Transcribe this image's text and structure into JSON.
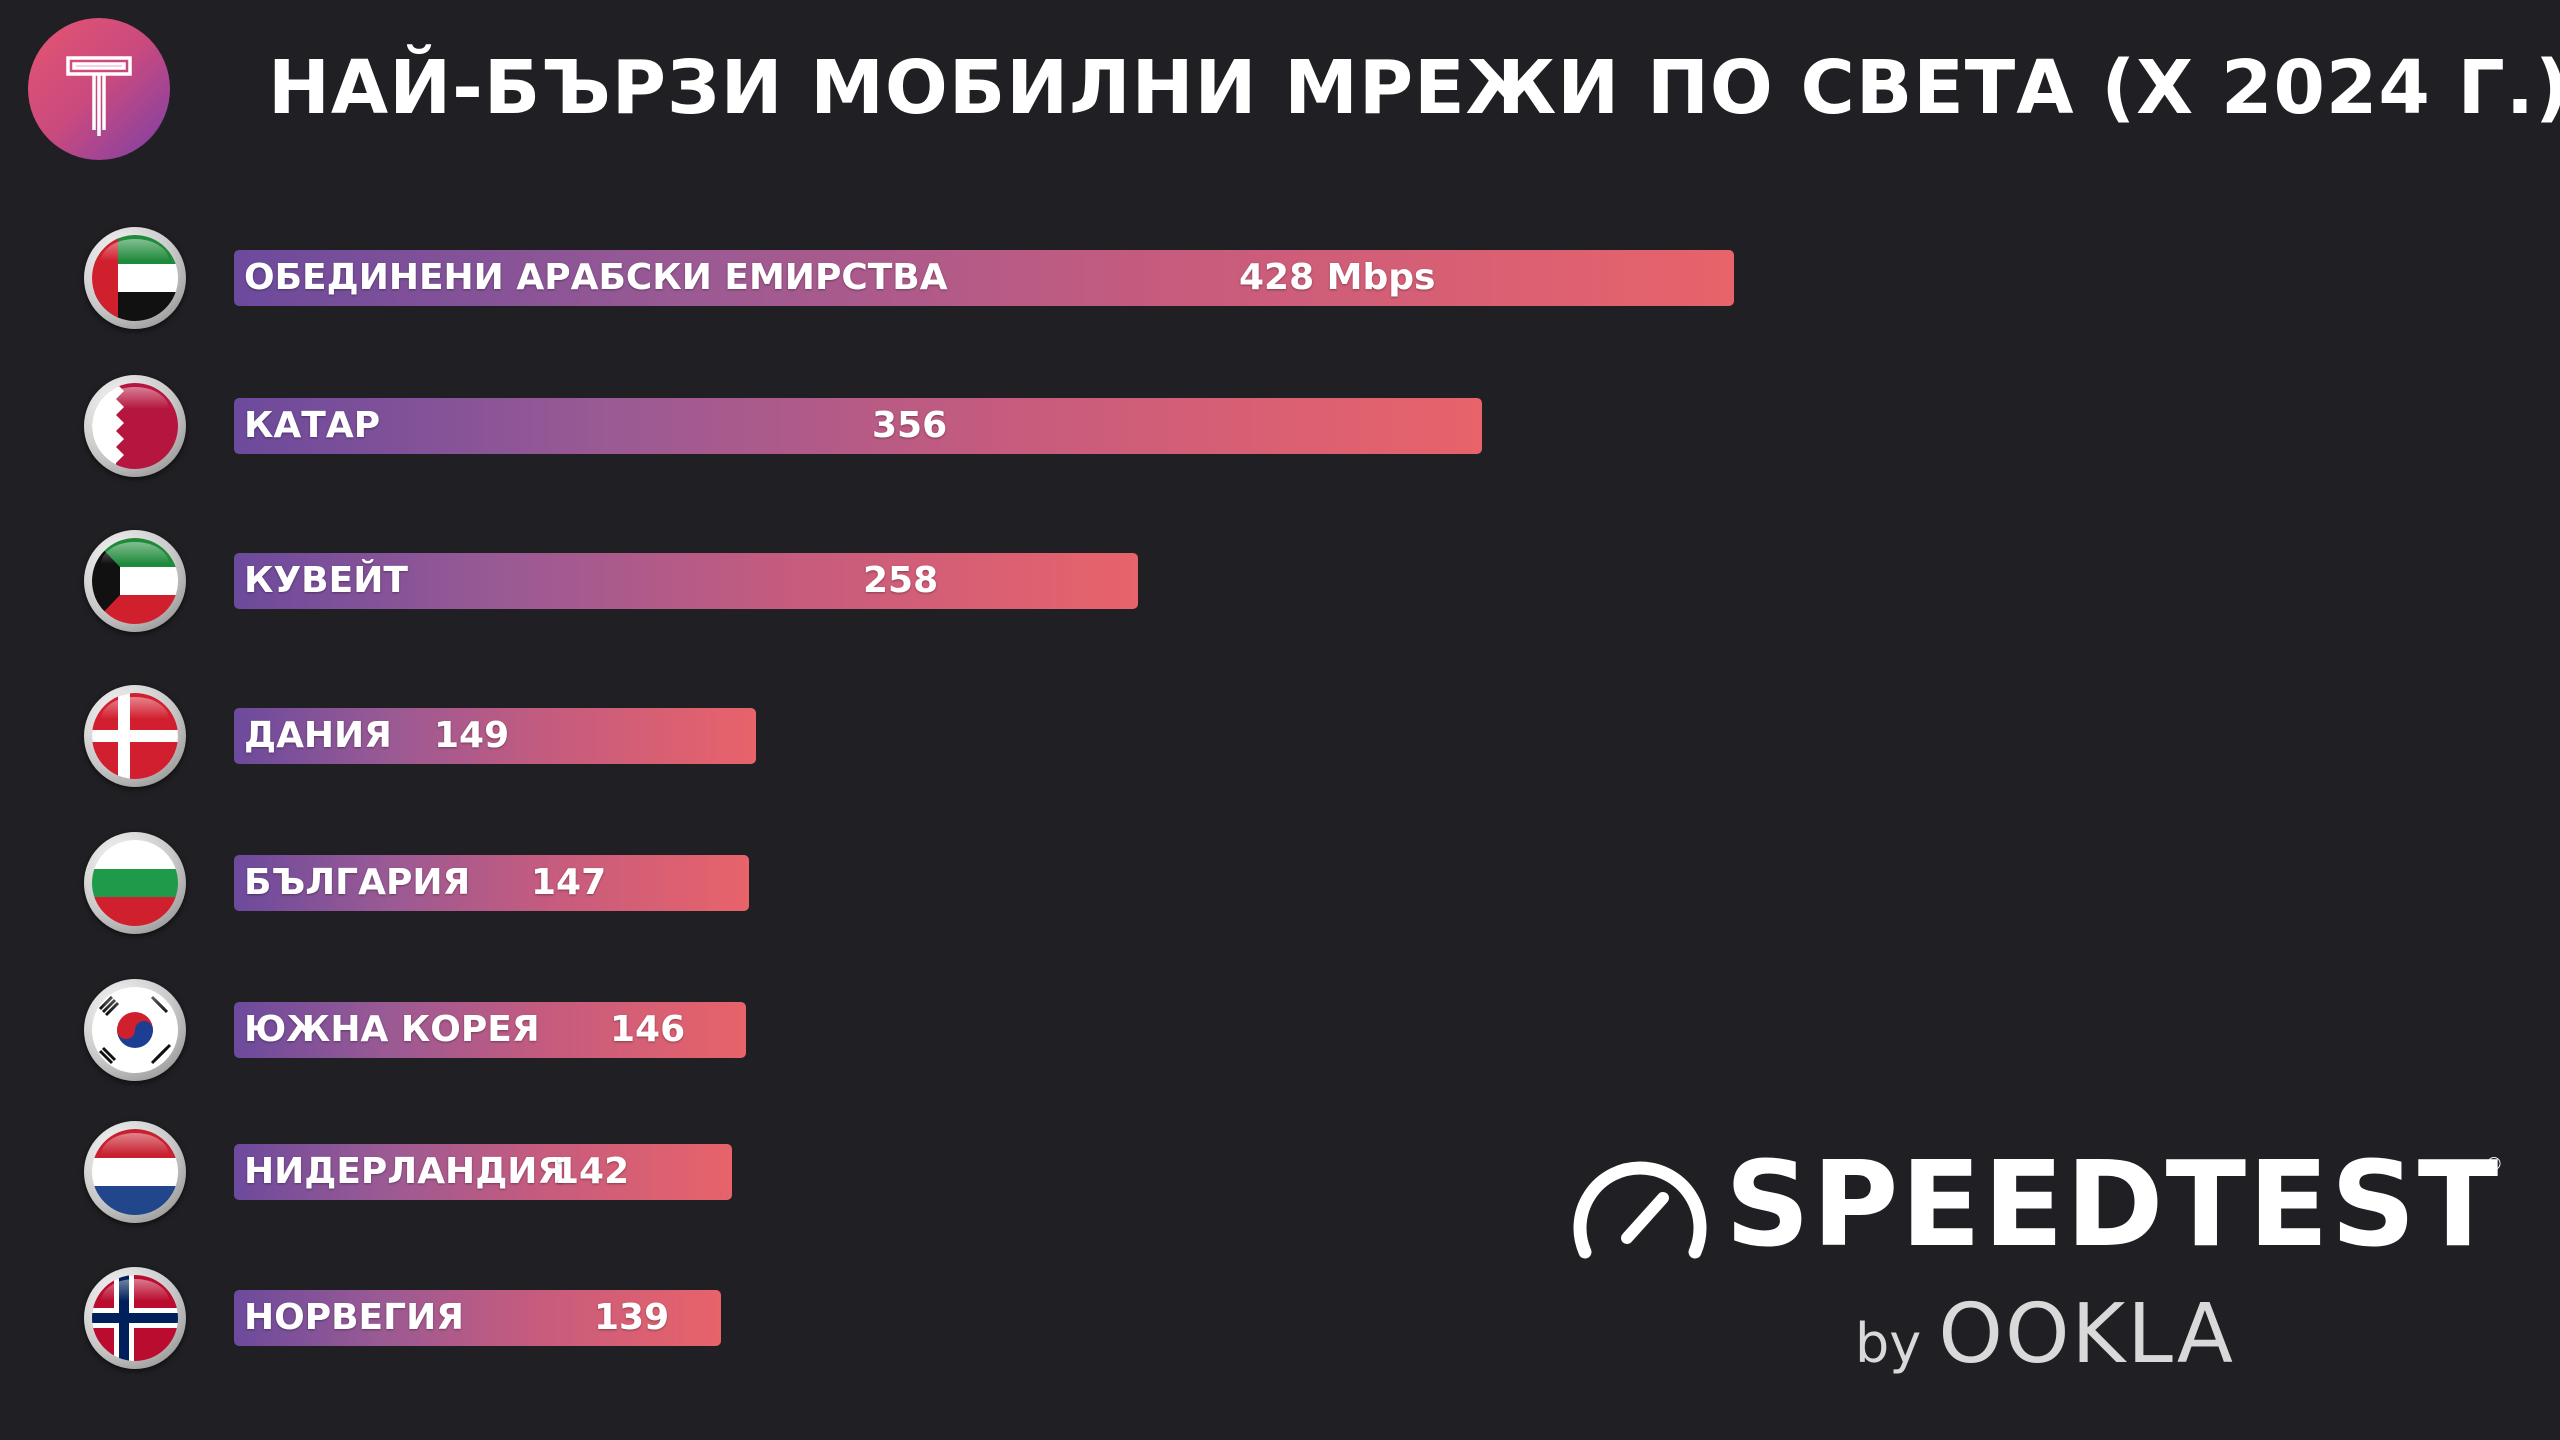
{
  "title": "НАЙ-БЪРЗИ МОБИЛНИ МРЕЖИ ПО СВЕТА (X 2024 Г.)",
  "brand": {
    "logo_letter": "T",
    "speedtest": "SPEEDTEST",
    "registered": "®",
    "by": "by",
    "ookla": "OOKLA"
  },
  "colors": {
    "background": "#202024",
    "bar_start": "#6c4a9c",
    "bar_end": "#e8636a"
  },
  "chart_data": {
    "type": "bar",
    "orientation": "horizontal",
    "title": "НАЙ-БЪРЗИ МОБИЛНИ МРЕЖИ ПО СВЕТА (X 2024 Г.)",
    "unit": "Mbps",
    "categories": [
      "ОБЕДИНЕНИ АРАБСКИ ЕМИРСТВА",
      "КАТАР",
      "КУВЕЙТ",
      "ДАНИЯ",
      "БЪЛГАРИЯ",
      "ЮЖНА КОРЕЯ",
      "НИДЕРЛАНДИЯ",
      "НОРВЕГИЯ"
    ],
    "values": [
      428,
      356,
      258,
      149,
      147,
      146,
      142,
      139
    ],
    "value_labels": [
      "428 Mbps",
      "356",
      "258",
      "149",
      "147",
      "146",
      "142",
      "139"
    ],
    "flags": [
      "uae-flag-icon",
      "qatar-flag-icon",
      "kuwait-flag-icon",
      "denmark-flag-icon",
      "bulgaria-flag-icon",
      "south-korea-flag-icon",
      "netherlands-flag-icon",
      "norway-flag-icon"
    ],
    "legend": false,
    "grid": false
  }
}
